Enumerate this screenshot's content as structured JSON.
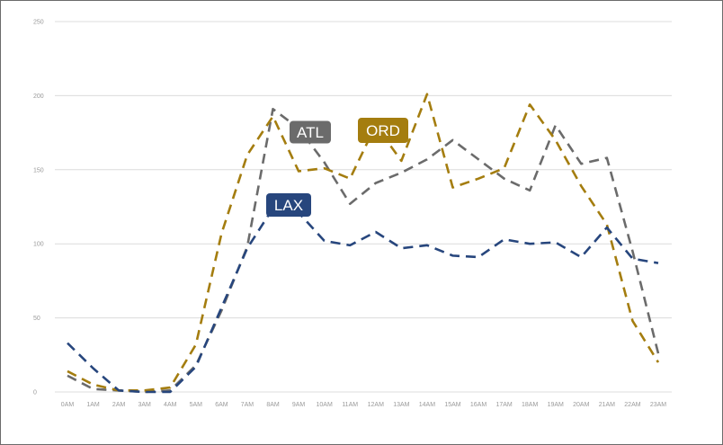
{
  "chart_data": {
    "type": "line",
    "title": "",
    "xlabel": "",
    "ylabel": "",
    "ylim": [
      0,
      250
    ],
    "yticks": [
      0,
      50,
      100,
      150,
      200,
      250
    ],
    "ytick_labels": [
      "0",
      "50",
      "100",
      "150",
      "200",
      "250"
    ],
    "categories": [
      "0AM",
      "1AM",
      "2AM",
      "3AM",
      "4AM",
      "5AM",
      "6AM",
      "7AM",
      "8AM",
      "9AM",
      "10AM",
      "11AM",
      "12AM",
      "13AM",
      "14AM",
      "15AM",
      "16AM",
      "17AM",
      "18AM",
      "19AM",
      "20AM",
      "21AM",
      "22AM",
      "23AM"
    ],
    "grid": "horizontal",
    "line_style": "dashed",
    "series": [
      {
        "name": "ATL",
        "color": "#6b6b6b",
        "values": [
          11,
          2,
          1,
          0,
          1,
          18,
          55,
          98,
          191,
          178,
          155,
          127,
          141,
          148,
          157,
          170,
          157,
          144,
          136,
          180,
          154,
          158,
          95,
          26
        ]
      },
      {
        "name": "ORD",
        "color": "#a47d0f",
        "values": [
          14,
          5,
          1,
          1,
          3,
          32,
          107,
          160,
          186,
          149,
          151,
          144,
          180,
          156,
          201,
          138,
          144,
          151,
          194,
          170,
          139,
          113,
          48,
          20
        ]
      },
      {
        "name": "LAX",
        "color": "#27467d",
        "values": [
          33,
          16,
          1,
          0,
          0,
          17,
          57,
          97,
          124,
          121,
          102,
          99,
          108,
          97,
          99,
          92,
          91,
          103,
          100,
          101,
          91,
          111,
          90,
          87
        ]
      }
    ]
  }
}
